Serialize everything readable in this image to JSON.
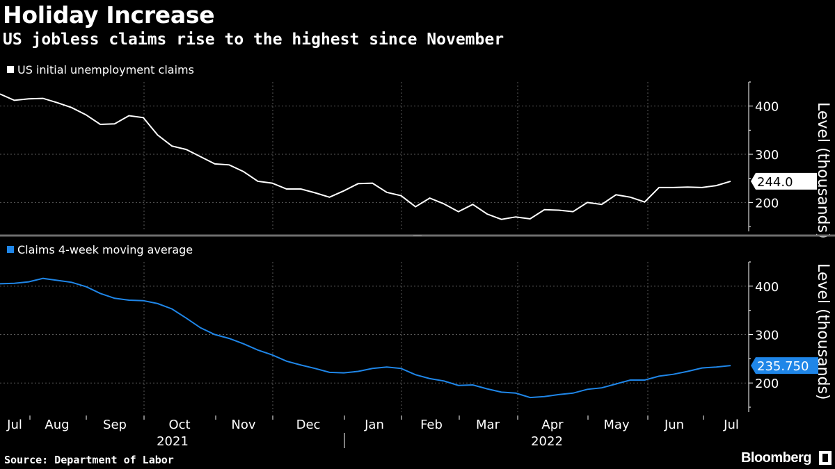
{
  "header": {
    "title": "Holiday Increase",
    "subtitle": "US jobless claims rise to the highest since November"
  },
  "footer": {
    "source": "Source: Department of Labor",
    "brand": "Bloomberg"
  },
  "colors": {
    "background": "#000000",
    "claims_line": "#ffffff",
    "avg_line": "#1f86e8",
    "grid": "#5a5a5a"
  },
  "chart_data": [
    {
      "type": "line",
      "panel": "top",
      "legend": "US initial unemployment claims",
      "legend_color": "#ffffff",
      "ylabel": "Level (thousands)",
      "ylim": [
        140,
        450
      ],
      "yticks": [
        200,
        300,
        400
      ],
      "last_value_label": "244.0",
      "series": [
        {
          "name": "US initial unemployment claims",
          "color": "#ffffff",
          "values": [
            425,
            412,
            415,
            416,
            407,
            397,
            382,
            362,
            363,
            380,
            376,
            340,
            317,
            310,
            295,
            280,
            278,
            264,
            244,
            240,
            228,
            228,
            220,
            211,
            224,
            239,
            240,
            221,
            214,
            191,
            209,
            197,
            181,
            196,
            176,
            165,
            170,
            166,
            185,
            184,
            181,
            200,
            196,
            216,
            211,
            201,
            231,
            231,
            232,
            231,
            235,
            244
          ]
        }
      ]
    },
    {
      "type": "line",
      "panel": "bottom",
      "legend": "Claims 4-week moving average",
      "legend_color": "#1f86e8",
      "ylabel": "Level (thousands)",
      "ylim": [
        140,
        450
      ],
      "yticks": [
        200,
        300,
        400
      ],
      "last_value_label": "235.750",
      "series": [
        {
          "name": "Claims 4-week moving average",
          "color": "#1f86e8",
          "values": [
            405,
            406,
            409,
            416,
            412,
            408,
            399,
            385,
            375,
            371,
            370,
            364,
            353,
            334,
            314,
            300,
            292,
            281,
            268,
            258,
            245,
            237,
            230,
            222,
            221,
            224,
            230,
            233,
            230,
            217,
            209,
            204,
            195,
            196,
            188,
            181,
            179,
            170,
            172,
            176,
            179,
            187,
            190,
            198,
            206,
            206,
            214,
            218,
            224,
            231,
            233,
            236
          ]
        }
      ]
    }
  ],
  "x_axis": {
    "months": [
      "Jul",
      "Aug",
      "Sep",
      "Oct",
      "Nov",
      "Dec",
      "Jan",
      "Feb",
      "Mar",
      "Apr",
      "May",
      "Jun",
      "Jul"
    ],
    "years": [
      "2021",
      "2022"
    ]
  }
}
